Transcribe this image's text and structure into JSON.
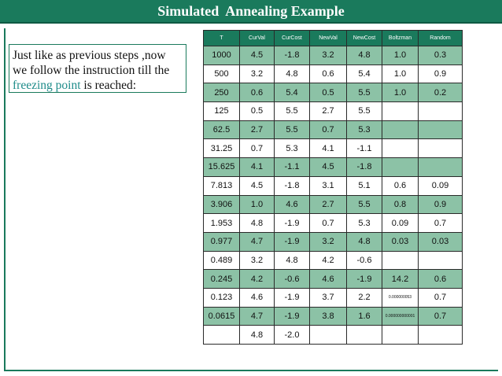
{
  "slide": {
    "title": "Simulated  Annealing Example",
    "text_before": "Just like as previous steps ,now we follow the instruction till the ",
    "text_highlight": "freezing point",
    "text_after": " is reached:"
  },
  "colors": {
    "accent": "#1a7a5c",
    "row_shade": "#8cc2a6",
    "highlight_text": "#1f8c8a"
  },
  "table": {
    "headers": [
      "T",
      "CurVal",
      "CurCost",
      "NewVal",
      "NewCost",
      "Boltzman",
      "Random"
    ],
    "rows": [
      {
        "shaded": true,
        "cells": [
          "1000",
          "4.5",
          "-1.8",
          "3.2",
          "4.8",
          "1.0",
          "0.3"
        ]
      },
      {
        "shaded": false,
        "cells": [
          "500",
          "3.2",
          "4.8",
          "0.6",
          "5.4",
          "1.0",
          "0.9"
        ]
      },
      {
        "shaded": true,
        "cells": [
          "250",
          "0.6",
          "5.4",
          "0.5",
          "5.5",
          "1.0",
          "0.2"
        ]
      },
      {
        "shaded": false,
        "cells": [
          "125",
          "0.5",
          "5.5",
          "2.7",
          "5.5",
          "",
          ""
        ]
      },
      {
        "shaded": true,
        "cells": [
          "62.5",
          "2.7",
          "5.5",
          "0.7",
          "5.3",
          "",
          ""
        ]
      },
      {
        "shaded": false,
        "cells": [
          "31.25",
          "0.7",
          "5.3",
          "4.1",
          "-1.1",
          "",
          ""
        ]
      },
      {
        "shaded": true,
        "cells": [
          "15.625",
          "4.1",
          "-1.1",
          "4.5",
          "-1.8",
          "",
          ""
        ]
      },
      {
        "shaded": false,
        "cells": [
          "7.813",
          "4.5",
          "-1.8",
          "3.1",
          "5.1",
          "0.6",
          "0.09"
        ]
      },
      {
        "shaded": true,
        "cells": [
          "3.906",
          "1.0",
          "4.6",
          "2.7",
          "5.5",
          "0.8",
          "0.9"
        ]
      },
      {
        "shaded": false,
        "cells": [
          "1.953",
          "4.8",
          "-1.9",
          "0.7",
          "5.3",
          "0.09",
          "0.7"
        ]
      },
      {
        "shaded": true,
        "cells": [
          "0.977",
          "4.7",
          "-1.9",
          "3.2",
          "4.8",
          "0.03",
          "0.03"
        ]
      },
      {
        "shaded": false,
        "cells": [
          "0.489",
          "3.2",
          "4.8",
          "4.2",
          "-0.6",
          "",
          ""
        ]
      },
      {
        "shaded": true,
        "cells": [
          "0.245",
          "4.2",
          "-0.6",
          "4.6",
          "-1.9",
          "14.2",
          "0.6"
        ]
      },
      {
        "shaded": false,
        "cells": [
          "0.123",
          "4.6",
          "-1.9",
          "3.7",
          "2.2",
          "0.000000053",
          "0.7"
        ]
      },
      {
        "shaded": true,
        "cells": [
          "0.0615",
          "4.7",
          "-1.9",
          "3.8",
          "1.6",
          "0.000000000001",
          "0.7"
        ]
      },
      {
        "shaded": false,
        "cells": [
          "",
          "4.8",
          "-2.0",
          "",
          "",
          "",
          ""
        ]
      }
    ]
  }
}
